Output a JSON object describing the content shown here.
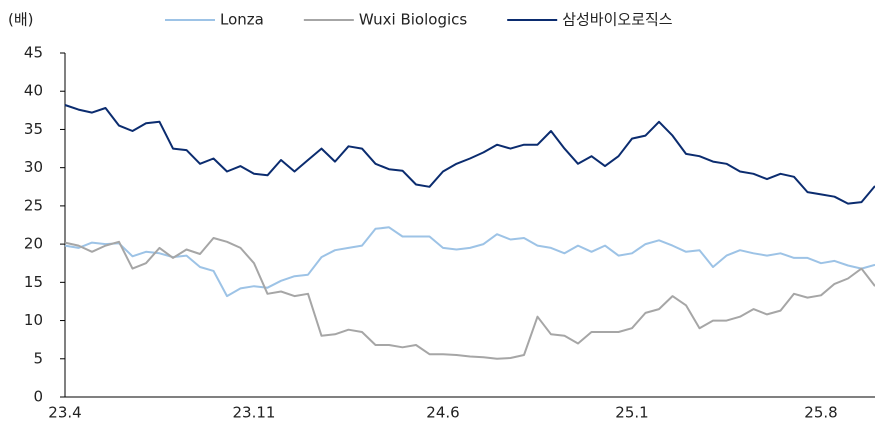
{
  "chart_data": {
    "type": "line",
    "y_axis_label": "(배)",
    "categories": [
      "23.4",
      null,
      null,
      null,
      null,
      null,
      null,
      null,
      null,
      null,
      null,
      null,
      null,
      null,
      "23.11",
      null,
      null,
      null,
      null,
      null,
      null,
      null,
      null,
      null,
      null,
      null,
      null,
      null,
      "24.6",
      null,
      null,
      null,
      null,
      null,
      null,
      null,
      null,
      null,
      null,
      null,
      null,
      null,
      "25.1",
      null,
      null,
      null,
      null,
      null,
      null,
      null,
      null,
      null,
      null,
      null,
      null,
      null,
      "25.8",
      null,
      null,
      null,
      null
    ],
    "ylim": [
      0,
      45
    ],
    "yticks": [
      0,
      5,
      10,
      15,
      20,
      25,
      30,
      35,
      40,
      45
    ],
    "grid": false,
    "legend": "top",
    "series": [
      {
        "name": "Lonza",
        "color": "#9dc3e6",
        "values": [
          19.8,
          19.5,
          20.2,
          20.0,
          20.1,
          18.4,
          19.0,
          18.8,
          18.3,
          18.5,
          17,
          16.5,
          13.2,
          14.2,
          14.5,
          14.3,
          15.2,
          15.8,
          16,
          18.3,
          19.2,
          19.5,
          19.8,
          22,
          22.2,
          21,
          21,
          21,
          19.5,
          19.3,
          19.5,
          20,
          21.3,
          20.6,
          20.8,
          19.8,
          19.5,
          18.8,
          19.8,
          19,
          19.8,
          18.5,
          18.8,
          20,
          20.5,
          19.8,
          19,
          19.2,
          17,
          18.5,
          19.2,
          18.8,
          18.5,
          18.8,
          18.2,
          18.2,
          17.5,
          17.8,
          17.2,
          16.8,
          17.3
        ]
      },
      {
        "name": "Wuxi Biologics",
        "color": "#a6a6a6",
        "values": [
          20.2,
          19.8,
          19,
          19.8,
          20.3,
          16.8,
          17.5,
          19.5,
          18.2,
          19.3,
          18.7,
          20.8,
          20.3,
          19.5,
          17.5,
          13.5,
          13.8,
          13.2,
          13.5,
          8,
          8.2,
          8.8,
          8.5,
          6.8,
          6.8,
          6.5,
          6.8,
          5.6,
          5.6,
          5.5,
          5.3,
          5.2,
          5.0,
          5.1,
          5.5,
          10.5,
          8.2,
          8,
          7,
          8.5,
          8.5,
          8.5,
          9,
          11,
          11.5,
          13.2,
          12,
          9,
          10,
          10,
          10.5,
          11.5,
          10.8,
          11.3,
          13.5,
          13,
          13.3,
          14.8,
          15.5,
          16.8,
          14.5
        ]
      },
      {
        "name": "삼성바이오로직스",
        "color": "#0b2c6f",
        "values": [
          38.2,
          37.6,
          37.2,
          37.8,
          35.5,
          34.8,
          35.8,
          36,
          32.5,
          32.3,
          30.5,
          31.2,
          29.5,
          30.2,
          29.2,
          29.0,
          31,
          29.5,
          31,
          32.5,
          30.8,
          32.8,
          32.5,
          30.5,
          29.8,
          29.6,
          27.8,
          27.5,
          29.5,
          30.5,
          31.2,
          32,
          33,
          32.5,
          33,
          33,
          34.8,
          32.5,
          30.5,
          31.5,
          30.2,
          31.5,
          33.8,
          34.2,
          36,
          34.2,
          31.8,
          31.5,
          30.8,
          30.5,
          29.5,
          29.2,
          28.5,
          29.2,
          28.8,
          26.8,
          26.5,
          26.2,
          25.3,
          25.5,
          27.6
        ]
      }
    ]
  }
}
